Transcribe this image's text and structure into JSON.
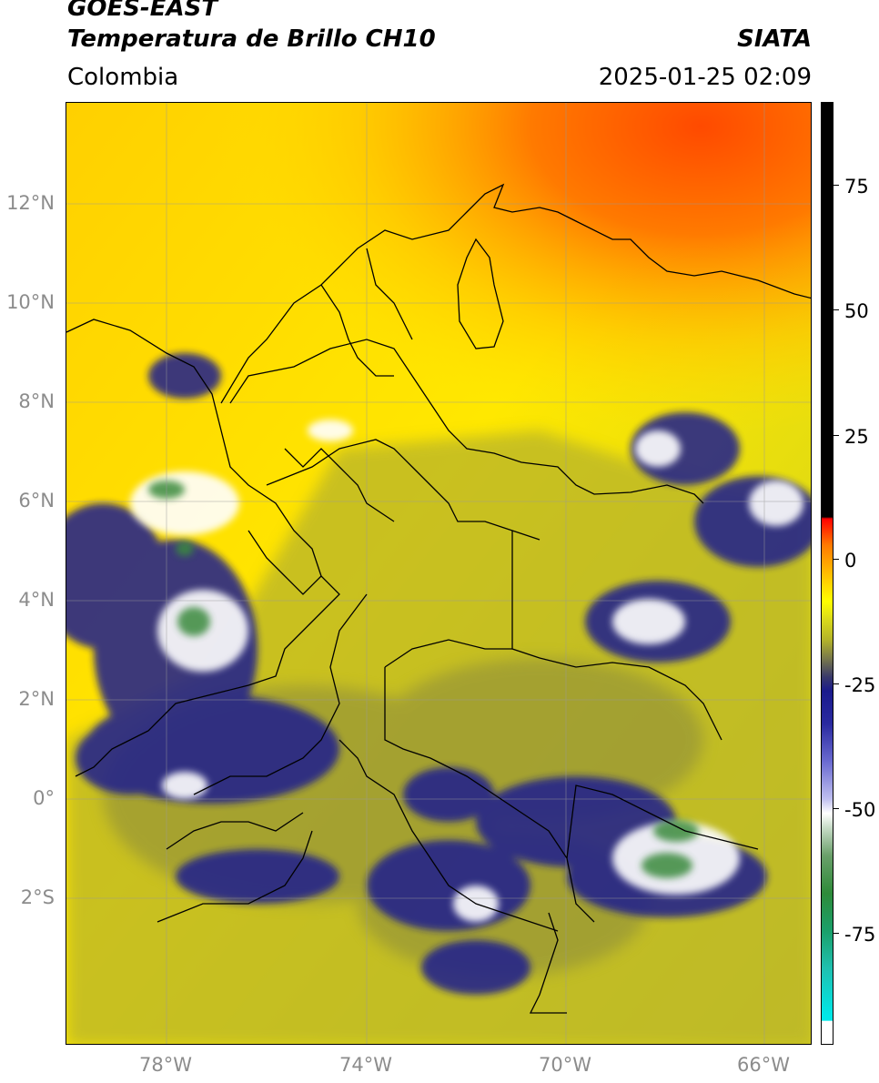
{
  "header": {
    "satellite": "GOES-EAST",
    "product": "Temperatura de Brillo CH10",
    "source": "SIATA",
    "region": "Colombia",
    "timestamp": "2025-01-25 02:09"
  },
  "map": {
    "lat_labels": [
      "12°N",
      "10°N",
      "8°N",
      "6°N",
      "4°N",
      "2°N",
      "0°",
      "2°S"
    ],
    "lon_labels": [
      "78°W",
      "74°W",
      "70°W",
      "66°W"
    ],
    "colors": {
      "warm_sea": "#ff8a00",
      "hot": "#ff5500",
      "land_warm": "#ffee00",
      "mid": "#c9c42a",
      "cold": "#1c1c8f",
      "very_cold": "#ffffff",
      "coldest": "#3a8a3e"
    }
  },
  "colorbar": {
    "ticks": [
      "75",
      "50",
      "25",
      "0",
      "-25",
      "-50",
      "-75"
    ]
  }
}
